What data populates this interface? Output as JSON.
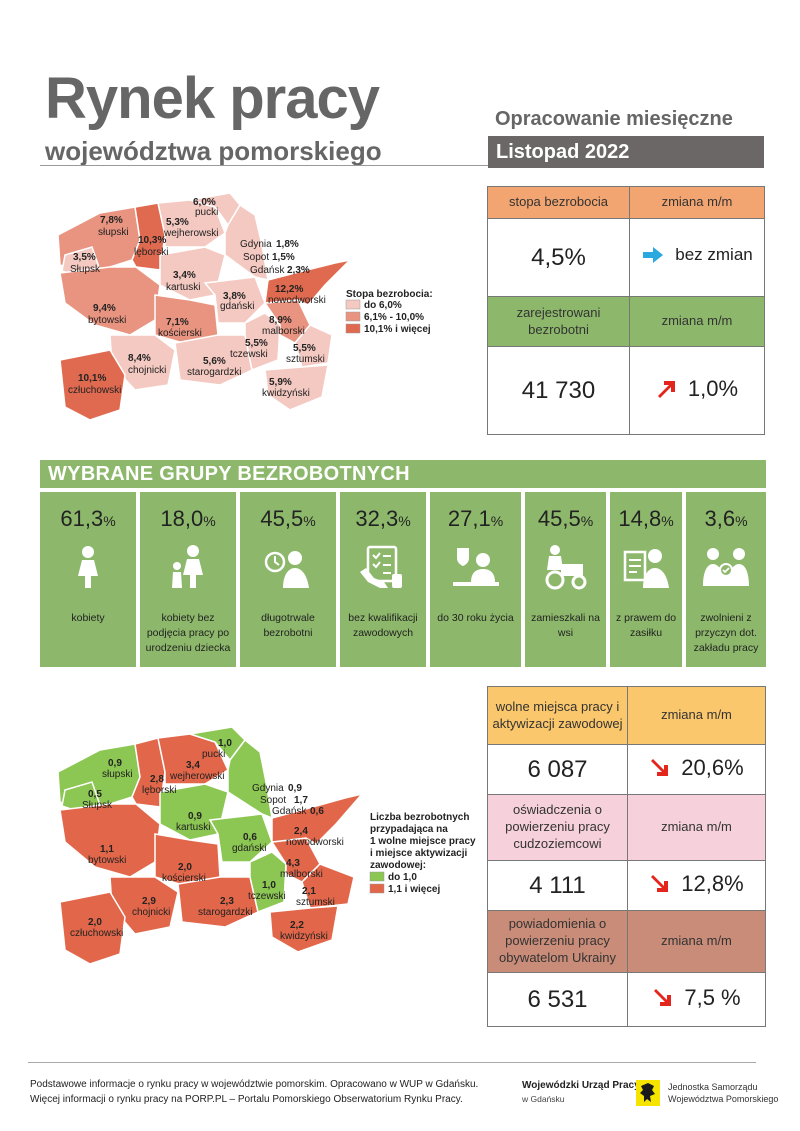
{
  "header": {
    "title": "Rynek pracy",
    "subtitle": "województwa pomorskiego",
    "edition_type": "Opracowanie miesięczne",
    "edition_date": "Listopad 2022"
  },
  "map1": {
    "legend_title": "Stopa bezrobocia:",
    "legend": [
      {
        "label": "do 6,0%",
        "color": "#f4c9c1"
      },
      {
        "label": "6,1% - 10,0%",
        "color": "#e99480"
      },
      {
        "label": "10,1% i więcej",
        "color": "#e06a50"
      }
    ],
    "districts": [
      {
        "value": "7,8%",
        "name": "słupski"
      },
      {
        "value": "10,3%",
        "name": "lęborski"
      },
      {
        "value": "5,3%",
        "name": "wejherowski"
      },
      {
        "value": "6,0%",
        "name": "pucki"
      },
      {
        "value": "3,5%",
        "name": "Słupsk"
      },
      {
        "value": "3,4%",
        "name": "kartuski"
      },
      {
        "value": "9,4%",
        "name": "bytowski"
      },
      {
        "value": "3,8%",
        "name": "gdański"
      },
      {
        "value": "7,1%",
        "name": "kościerski"
      },
      {
        "value": "8,4%",
        "name": "chojnicki"
      },
      {
        "value": "5,6%",
        "name": "starogardzki"
      },
      {
        "value": "5,5%",
        "name": "tczewski"
      },
      {
        "value": "8,9%",
        "name": "malborski"
      },
      {
        "value": "12,2%",
        "name": "nowodworski"
      },
      {
        "value": "5,5%",
        "name": "sztumski"
      },
      {
        "value": "5,9%",
        "name": "kwidzyński"
      },
      {
        "value": "10,1%",
        "name": "człuchowski"
      }
    ],
    "cities": [
      {
        "name": "Gdynia",
        "value": "1,8%"
      },
      {
        "name": "Sopot",
        "value": "1,5%"
      },
      {
        "name": "Gdańsk",
        "value": "2,3%"
      }
    ]
  },
  "map2": {
    "legend_title_lines": [
      "Liczba bezrobotnych",
      "przypadająca na",
      "1 wolne miejsce pracy",
      "i miejsce aktywizacji",
      "zawodowej:"
    ],
    "legend": [
      {
        "label": "do 1,0",
        "color": "#8cc653"
      },
      {
        "label": "1,1 i więcej",
        "color": "#e2674a"
      }
    ],
    "districts": [
      {
        "value": "0,9",
        "name": "słupski"
      },
      {
        "value": "2,8",
        "name": "lęborski"
      },
      {
        "value": "3,4",
        "name": "wejherowski"
      },
      {
        "value": "1,0",
        "name": "pucki"
      },
      {
        "value": "0,5",
        "name": "Słupsk"
      },
      {
        "value": "0,9",
        "name": "kartuski"
      },
      {
        "value": "1,1",
        "name": "bytowski"
      },
      {
        "value": "0,6",
        "name": "gdański"
      },
      {
        "value": "2,0",
        "name": "kościerski"
      },
      {
        "value": "2,9",
        "name": "chojnicki"
      },
      {
        "value": "2,3",
        "name": "starogardzki"
      },
      {
        "value": "1,0",
        "name": "tczewski"
      },
      {
        "value": "4,3",
        "name": "malborski"
      },
      {
        "value": "2,4",
        "name": "nowodworski"
      },
      {
        "value": "2,1",
        "name": "sztumski"
      },
      {
        "value": "2,2",
        "name": "kwidzyński"
      },
      {
        "value": "2,0",
        "name": "człuchowski"
      }
    ],
    "cities": [
      {
        "name": "Gdynia",
        "value": "0,9"
      },
      {
        "name": "Sopot",
        "value": "1,7"
      },
      {
        "name": "Gdańsk",
        "value": "0,6"
      }
    ]
  },
  "rate_table": {
    "rate_header": "stopa bezrobocia",
    "change_header": "zmiana m/m",
    "rate_value": "4,5%",
    "rate_change": "bez zmian",
    "rate_change_icon": "arrow-right-icon",
    "registered_header": "zarejestrowani bezrobotni",
    "registered_change_header": "zmiana m/m",
    "registered_value": "41 730",
    "registered_change": "1,0%",
    "registered_change_icon": "arrow-up-right-icon",
    "colors": {
      "orange": "#f2a571",
      "green": "#8db86b",
      "blue_arrow": "#29a9e0",
      "red_arrow": "#e3251c"
    }
  },
  "groups": {
    "title": "WYBRANE GRUPY BEZROBOTNYCH",
    "items": [
      {
        "value": "61,3",
        "unit": "%",
        "label": "kobiety",
        "icon": "woman-icon"
      },
      {
        "value": "18,0",
        "unit": "%",
        "label": "kobiety bez podjęcia pracy po urodzeniu dziecka",
        "icon": "mother-child-icon"
      },
      {
        "value": "45,5",
        "unit": "%",
        "label": "długotrwale bezrobotni",
        "icon": "clock-person-icon"
      },
      {
        "value": "32,3",
        "unit": "%",
        "label": "bez kwalifikacji zawodowych",
        "icon": "checklist-hand-icon"
      },
      {
        "value": "27,1",
        "unit": "%",
        "label": "do 30 roku życia",
        "icon": "young-person-laptop-icon"
      },
      {
        "value": "45,5",
        "unit": "%",
        "label": "zamieszkali na wsi",
        "icon": "farmer-tractor-icon"
      },
      {
        "value": "14,8",
        "unit": "%",
        "label": "z prawem do zasiłku",
        "icon": "benefit-document-icon"
      },
      {
        "value": "3,6",
        "unit": "%",
        "label": "zwolnieni z przyczyn dot. zakładu pracy",
        "icon": "handshake-people-icon"
      }
    ]
  },
  "offers_table": {
    "vacancies_header": "wolne miejsca pracy i aktywizacji zawodowej",
    "vacancies_change_header": "zmiana m/m",
    "vacancies_value": "6 087",
    "vacancies_change": "20,6%",
    "declarations_header": "oświadczenia o powierzeniu pracy cudzoziemcowi",
    "declarations_change_header": "zmiana m/m",
    "declarations_value": "4 111",
    "declarations_change": "12,8%",
    "notifications_header": "powiadomienia o powierzeniu pracy obywatelom Ukrainy",
    "notifications_change_header": "zmiana m/m",
    "notifications_value": "6 531",
    "notifications_change": "7,5 %",
    "change_icon": "arrow-down-right-icon",
    "colors": {
      "yellow": "#fbc76c",
      "pink": "#f6d1db",
      "brown": "#c98c78"
    }
  },
  "footer": {
    "line1": "Podstawowe informacje o rynku pracy w województwie pomorskim. Opracowano w WUP w Gdańsku.",
    "line2": "Więcej informacji o rynku pracy na PORP.PL – Portalu Pomorskiego Obserwatorium Rynku Pracy.",
    "wup_name": "Wojewódzki Urząd Pracy",
    "wup_city": "w Gdańsku",
    "jst_line1": "Jednostka Samorządu",
    "jst_line2": "Województwa Pomorskiego",
    "logo_icon": "pomorskie-griffin-logo-icon"
  }
}
